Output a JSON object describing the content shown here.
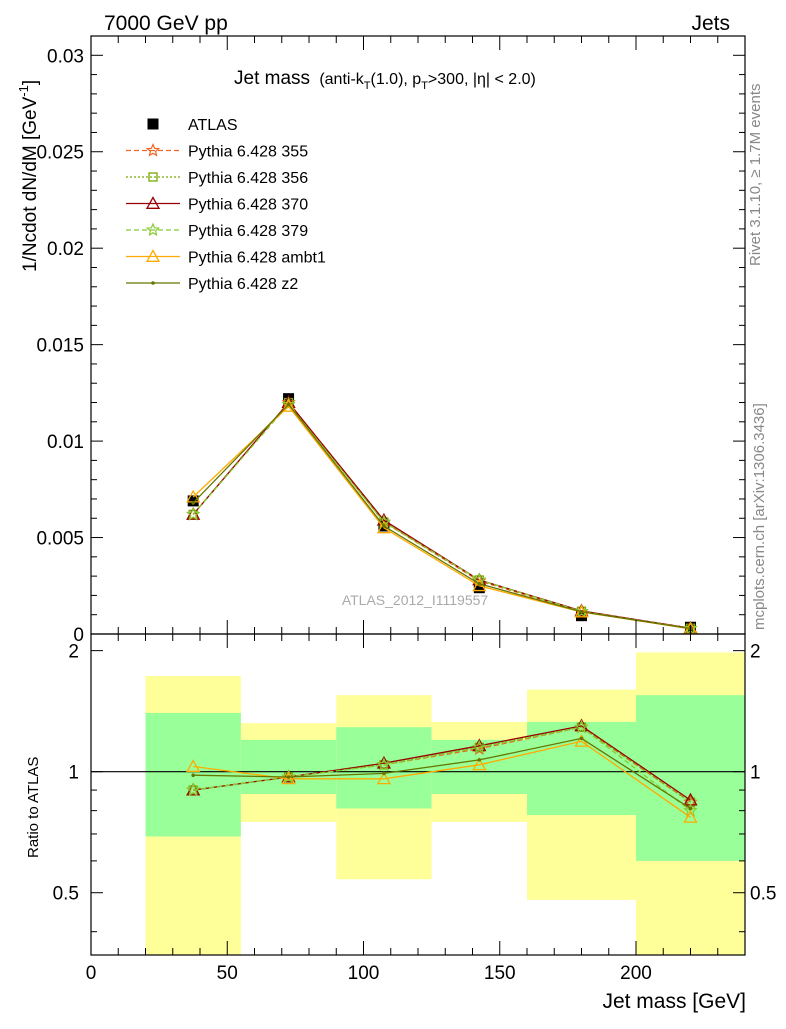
{
  "header": {
    "left": "7000 GeV pp",
    "right": "Jets"
  },
  "title": {
    "main": "Jet mass",
    "sub_pre": "(anti-k",
    "sub_t1": "T",
    "sub_mid": "(1.0), p",
    "sub_t2": "T",
    "sub_post": ">300, |η| < 2.0)"
  },
  "side_labels": {
    "rivet": "Rivet 3.1.10, ≥ 1.7M events",
    "mcplots": "mcplots.cern.ch [arXiv:1306.3436]"
  },
  "watermark": "ATLAS_2012_I1119557",
  "colors": {
    "data": "#000000",
    "band_inner": "#99ff99",
    "band_outer": "#ffff99"
  },
  "chart_data": [
    {
      "type": "line",
      "panel": "main",
      "ylabel_main": "1/Ncdot dN/dM [GeV",
      "ylabel_sup": "-1",
      "ylabel_close": "]",
      "xlim": [
        0,
        240
      ],
      "ylim": [
        0,
        0.031
      ],
      "yticks": [
        0,
        0.005,
        0.01,
        0.015,
        0.02,
        0.025,
        0.03
      ],
      "ytick_labels": [
        "0",
        "0.005",
        "0.01",
        "0.015",
        "0.02",
        "0.025",
        "0.03"
      ],
      "x": [
        37.5,
        72.5,
        107.5,
        142.5,
        180,
        220
      ],
      "bin_edges": [
        20,
        55,
        90,
        125,
        160,
        200,
        240
      ],
      "legend_placement": "top-left",
      "series": [
        {
          "name": "ATLAS",
          "color": "#000000",
          "marker": "square",
          "dash": "",
          "values": [
            0.0069,
            0.0122,
            0.0056,
            0.0024,
            0.00095,
            0.00035
          ]
        },
        {
          "name": "Pythia 6.428 355",
          "color": "#ee6622",
          "marker": "star",
          "dash": "5,3",
          "values": [
            0.0062,
            0.012,
            0.0058,
            0.00275,
            0.00115,
            0.0003
          ]
        },
        {
          "name": "Pythia 6.428 356",
          "color": "#77aa00",
          "marker": "open-square",
          "dash": "2,2",
          "values": [
            0.0062,
            0.012,
            0.0058,
            0.0028,
            0.00118,
            0.0003
          ]
        },
        {
          "name": "Pythia 6.428 370",
          "color": "#990000",
          "marker": "open-triangle",
          "dash": "",
          "values": [
            0.0062,
            0.012,
            0.0059,
            0.0028,
            0.0012,
            0.0003
          ]
        },
        {
          "name": "Pythia 6.428 379",
          "color": "#88cc33",
          "marker": "star",
          "dash": "5,3",
          "values": [
            0.0062,
            0.0119,
            0.0058,
            0.0028,
            0.00117,
            0.00029
          ]
        },
        {
          "name": "Pythia 6.428 ambt1",
          "color": "#ffaa00",
          "marker": "open-triangle",
          "dash": "",
          "values": [
            0.0071,
            0.0118,
            0.0055,
            0.0025,
            0.00114,
            0.00027
          ]
        },
        {
          "name": "Pythia 6.428 z2",
          "color": "#667700",
          "marker": "dot",
          "dash": "",
          "values": [
            0.0068,
            0.0119,
            0.0056,
            0.0026,
            0.00115,
            0.00028
          ]
        }
      ]
    },
    {
      "type": "line",
      "panel": "ratio",
      "ylabel": "Ratio to ATLAS",
      "xlabel": "Jet mass [GeV]",
      "xlim": [
        0,
        240
      ],
      "ylim": [
        0.35,
        2.2
      ],
      "yticks": [
        0.5,
        1,
        2
      ],
      "ytick_labels": [
        "0.5",
        "1",
        "2"
      ],
      "xticks": [
        0,
        50,
        100,
        150,
        200
      ],
      "xtick_labels": [
        "0",
        "50",
        "100",
        "150",
        "200"
      ],
      "x": [
        37.5,
        72.5,
        107.5,
        142.5,
        180,
        220
      ],
      "bands": {
        "edges": [
          20,
          55,
          90,
          125,
          160,
          200,
          240
        ],
        "inner_lo": [
          0.69,
          0.88,
          0.81,
          0.88,
          0.78,
          0.6
        ],
        "inner_hi": [
          1.4,
          1.2,
          1.29,
          1.2,
          1.33,
          1.55
        ],
        "outer_lo": [
          0.35,
          0.75,
          0.54,
          0.75,
          0.48,
          0.35
        ],
        "outer_hi": [
          1.73,
          1.32,
          1.55,
          1.33,
          1.6,
          1.98
        ]
      },
      "series": [
        {
          "name": "Pythia 6.428 355",
          "color": "#ee6622",
          "dash": "5,3",
          "marker": "star",
          "values": [
            0.9,
            0.97,
            1.04,
            1.14,
            1.29,
            0.84
          ]
        },
        {
          "name": "Pythia 6.428 356",
          "color": "#77aa00",
          "dash": "2,2",
          "marker": "open-square",
          "values": [
            0.9,
            0.97,
            1.04,
            1.15,
            1.29,
            0.84
          ]
        },
        {
          "name": "Pythia 6.428 370",
          "color": "#990000",
          "dash": "",
          "marker": "open-triangle",
          "values": [
            0.9,
            0.97,
            1.05,
            1.16,
            1.3,
            0.85
          ]
        },
        {
          "name": "Pythia 6.428 379",
          "color": "#88cc33",
          "dash": "5,3",
          "marker": "star",
          "values": [
            0.9,
            0.97,
            1.04,
            1.15,
            1.29,
            0.8
          ]
        },
        {
          "name": "Pythia 6.428 ambt1",
          "color": "#ffaa00",
          "dash": "",
          "marker": "open-triangle",
          "values": [
            1.03,
            0.96,
            0.96,
            1.04,
            1.19,
            0.77
          ]
        },
        {
          "name": "Pythia 6.428 z2",
          "color": "#667700",
          "dash": "",
          "marker": "dot",
          "values": [
            0.98,
            0.97,
            0.99,
            1.07,
            1.21,
            0.81
          ]
        }
      ]
    }
  ]
}
